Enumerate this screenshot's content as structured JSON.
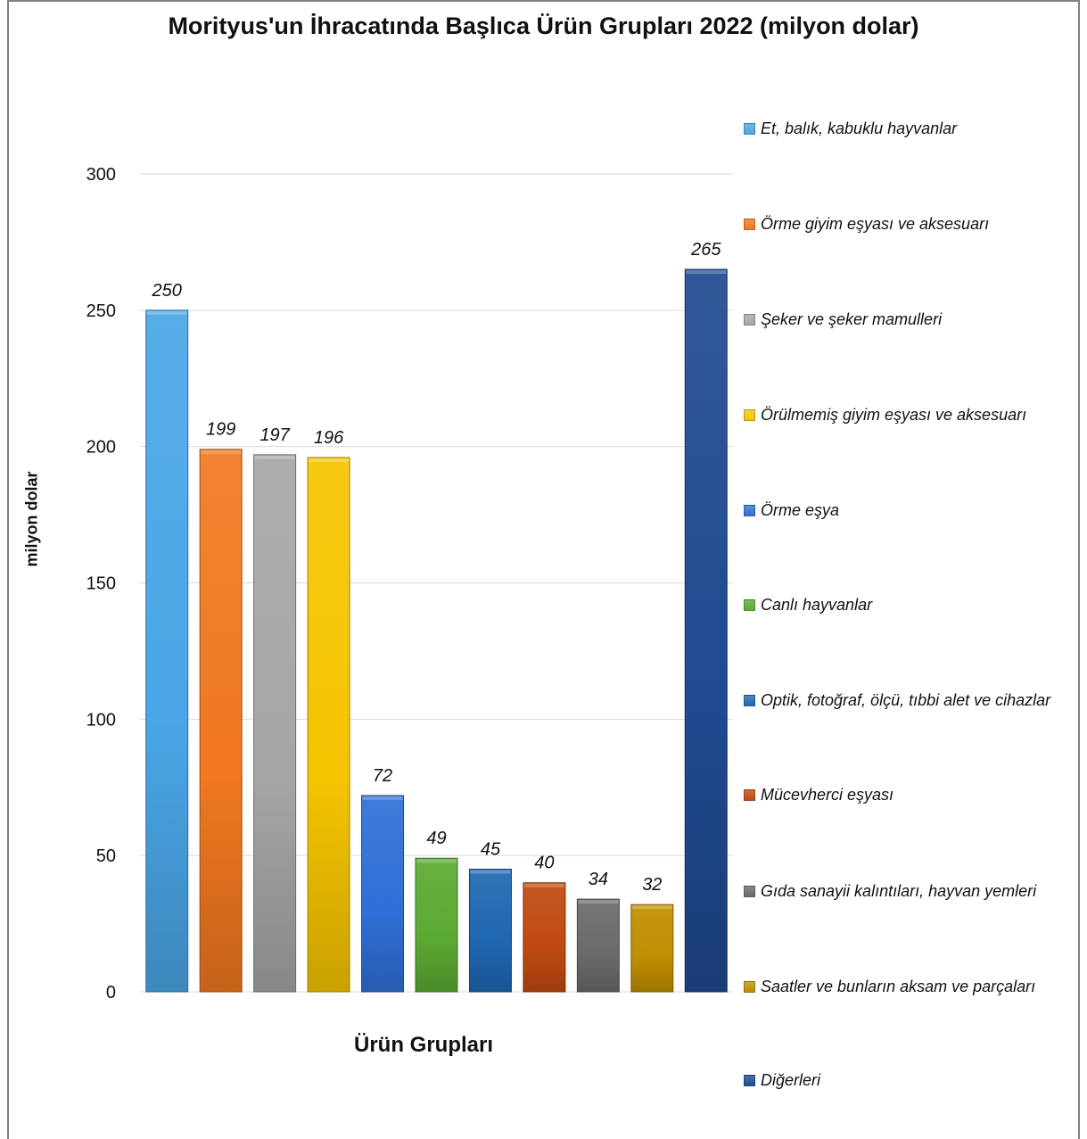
{
  "chart_data": {
    "type": "bar",
    "title": "Morityus'un İhracatında Başlıca Ürün Grupları 2022 (milyon dolar)",
    "xlabel": "Ürün Grupları",
    "ylabel": "milyon dolar",
    "ylim": [
      0,
      300
    ],
    "yticks": [
      0,
      50,
      100,
      150,
      200,
      250,
      300
    ],
    "grid": true,
    "legend_position": "right",
    "categories": [
      "Et, balık, kabuklu hayvanlar",
      "Örme giyim eşyası ve aksesuarı",
      "Şeker ve şeker mamulleri",
      "Örülmemiş giyim eşyası ve aksesuarı",
      "Örme eşya",
      "Canlı hayvanlar",
      "Optik, fotoğraf, ölçü, tıbbi alet ve cihazlar",
      "Mücevherci eşyası",
      "Gıda sanayii kalıntıları, hayvan yemleri",
      "Saatler ve bunların aksam ve parçaları",
      "Diğerleri"
    ],
    "values": [
      250,
      199,
      197,
      196,
      72,
      49,
      45,
      40,
      34,
      32,
      265
    ],
    "colors": [
      "#4aa6e6",
      "#f07820",
      "#a6a6a6",
      "#f5c400",
      "#2f6fd6",
      "#5aaa32",
      "#1f67b0",
      "#c04a10",
      "#6a6a6a",
      "#c08e00",
      "#1f4a90"
    ],
    "value_labels_italic": true
  }
}
